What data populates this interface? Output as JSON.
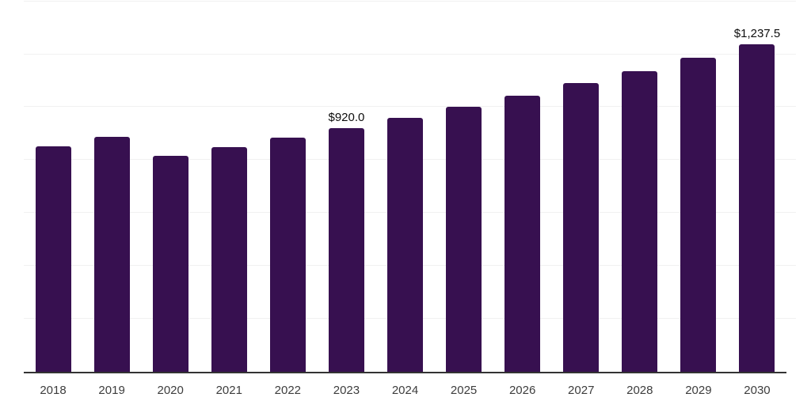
{
  "chart_data": {
    "type": "bar",
    "title": "",
    "xlabel": "",
    "ylabel": "",
    "categories": [
      "2018",
      "2019",
      "2020",
      "2021",
      "2022",
      "2023",
      "2024",
      "2025",
      "2026",
      "2027",
      "2028",
      "2029",
      "2030"
    ],
    "values": [
      853,
      889,
      815,
      850,
      886,
      920.0,
      959.8,
      1001.4,
      1044.8,
      1090.0,
      1137.2,
      1186.4,
      1237.5
    ],
    "data_labels": [
      "",
      "",
      "",
      "",
      "",
      "$920.0",
      "",
      "",
      "",
      "",
      "",
      "",
      "$1,237.5"
    ],
    "ylim": [
      0,
      1405
    ],
    "grid_step": 200,
    "grid_max": 1400,
    "grid_on": true,
    "y_axis_tick_labels_visible": false,
    "legend_position": "none",
    "colors": {
      "bar": "#371050",
      "axis_line": "#333333",
      "gridline": "#f1f1f1",
      "tick_label": "#3d3d3d",
      "data_label": "#0d0d0d",
      "background": "#ffffff"
    }
  }
}
